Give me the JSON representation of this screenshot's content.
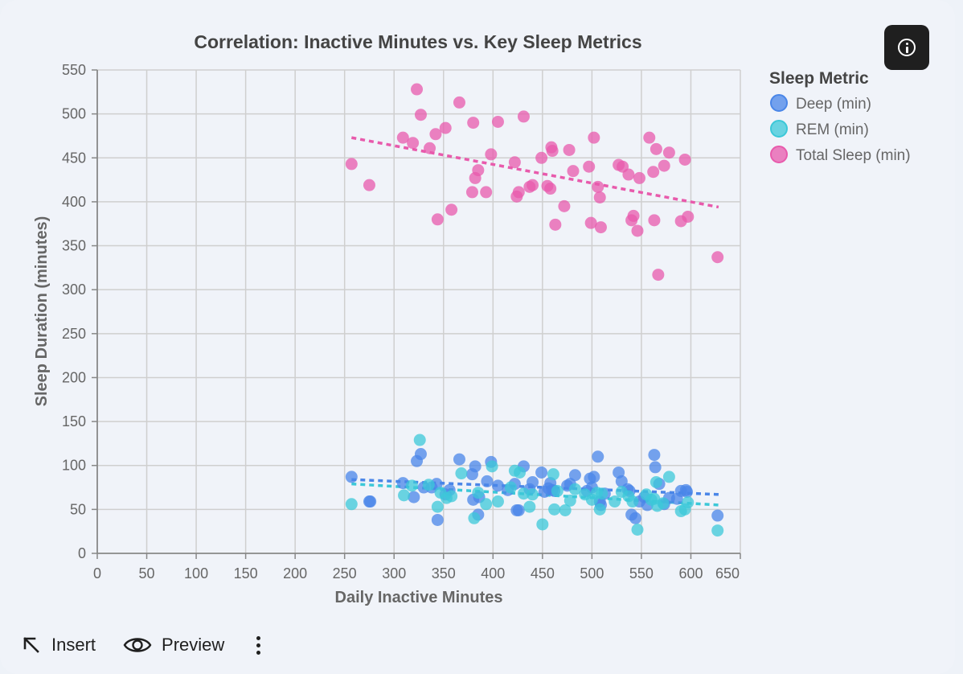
{
  "toolbar": {
    "insert_label": "Insert",
    "preview_label": "Preview"
  },
  "chart_data": {
    "type": "scatter",
    "title": "Correlation: Inactive Minutes vs. Key Sleep Metrics",
    "xlabel": "Daily Inactive Minutes",
    "ylabel": "Sleep Duration (minutes)",
    "xlim": [
      0,
      650
    ],
    "ylim": [
      0,
      550
    ],
    "xticks": [
      0,
      50,
      100,
      150,
      200,
      250,
      300,
      350,
      400,
      450,
      500,
      550,
      600,
      650
    ],
    "yticks": [
      0,
      50,
      100,
      150,
      200,
      250,
      300,
      350,
      400,
      450,
      500,
      550
    ],
    "grid": true,
    "legend": {
      "title": "Sleep Metric",
      "position": "right"
    },
    "series": [
      {
        "name": "Deep (min)",
        "color": "#4a86e8",
        "trend": [
          [
            257,
            84
          ],
          [
            628,
            67
          ]
        ],
        "points": [
          [
            257,
            87
          ],
          [
            275,
            59
          ],
          [
            276,
            59
          ],
          [
            309,
            80
          ],
          [
            320,
            64
          ],
          [
            323,
            105
          ],
          [
            327,
            113
          ],
          [
            330,
            75
          ],
          [
            338,
            75
          ],
          [
            343,
            79
          ],
          [
            344,
            38
          ],
          [
            352,
            67
          ],
          [
            356,
            72
          ],
          [
            366,
            107
          ],
          [
            379,
            90
          ],
          [
            380,
            61
          ],
          [
            382,
            99
          ],
          [
            385,
            44
          ],
          [
            394,
            82
          ],
          [
            398,
            104
          ],
          [
            405,
            77
          ],
          [
            422,
            79
          ],
          [
            424,
            49
          ],
          [
            426,
            49
          ],
          [
            431,
            99
          ],
          [
            437,
            73
          ],
          [
            440,
            81
          ],
          [
            449,
            92
          ],
          [
            452,
            70
          ],
          [
            456,
            74
          ],
          [
            458,
            80
          ],
          [
            460,
            72
          ],
          [
            462,
            71
          ],
          [
            475,
            77
          ],
          [
            478,
            79
          ],
          [
            483,
            89
          ],
          [
            498,
            85
          ],
          [
            500,
            75
          ],
          [
            502,
            87
          ],
          [
            506,
            110
          ],
          [
            508,
            59
          ],
          [
            509,
            55
          ],
          [
            527,
            92
          ],
          [
            530,
            82
          ],
          [
            536,
            73
          ],
          [
            538,
            71
          ],
          [
            540,
            44
          ],
          [
            544,
            40
          ],
          [
            548,
            59
          ],
          [
            556,
            55
          ],
          [
            563,
            112
          ],
          [
            564,
            98
          ],
          [
            568,
            79
          ],
          [
            573,
            56
          ],
          [
            578,
            63
          ],
          [
            590,
            71
          ],
          [
            595,
            72
          ],
          [
            596,
            70
          ],
          [
            627,
            43
          ],
          [
            386,
            64
          ],
          [
            415,
            72
          ],
          [
            495,
            71
          ],
          [
            513,
            68
          ],
          [
            553,
            64
          ],
          [
            586,
            62
          ]
        ]
      },
      {
        "name": "REM (min)",
        "color": "#3cc8d8",
        "trend": [
          [
            257,
            79
          ],
          [
            628,
            55
          ]
        ],
        "points": [
          [
            257,
            56
          ],
          [
            310,
            66
          ],
          [
            318,
            77
          ],
          [
            326,
            129
          ],
          [
            344,
            53
          ],
          [
            347,
            69
          ],
          [
            353,
            63
          ],
          [
            358,
            65
          ],
          [
            368,
            91
          ],
          [
            381,
            40
          ],
          [
            385,
            69
          ],
          [
            393,
            56
          ],
          [
            399,
            99
          ],
          [
            405,
            59
          ],
          [
            422,
            94
          ],
          [
            427,
            92
          ],
          [
            431,
            68
          ],
          [
            437,
            53
          ],
          [
            440,
            67
          ],
          [
            450,
            33
          ],
          [
            461,
            90
          ],
          [
            462,
            50
          ],
          [
            465,
            71
          ],
          [
            473,
            49
          ],
          [
            478,
            60
          ],
          [
            483,
            73
          ],
          [
            493,
            67
          ],
          [
            500,
            61
          ],
          [
            505,
            69
          ],
          [
            508,
            50
          ],
          [
            510,
            68
          ],
          [
            523,
            59
          ],
          [
            530,
            70
          ],
          [
            537,
            65
          ],
          [
            541,
            59
          ],
          [
            546,
            27
          ],
          [
            560,
            61
          ],
          [
            563,
            62
          ],
          [
            565,
            81
          ],
          [
            566,
            54
          ],
          [
            572,
            57
          ],
          [
            578,
            87
          ],
          [
            590,
            48
          ],
          [
            594,
            50
          ],
          [
            597,
            58
          ],
          [
            627,
            26
          ],
          [
            335,
            78
          ],
          [
            418,
            75
          ],
          [
            555,
            67
          ]
        ]
      },
      {
        "name": "Total Sleep (min)",
        "color": "#e85aac",
        "trend": [
          [
            257,
            473
          ],
          [
            628,
            394
          ]
        ],
        "points": [
          [
            257,
            443
          ],
          [
            275,
            419
          ],
          [
            309,
            473
          ],
          [
            319,
            467
          ],
          [
            323,
            528
          ],
          [
            327,
            499
          ],
          [
            336,
            461
          ],
          [
            342,
            477
          ],
          [
            344,
            380
          ],
          [
            352,
            484
          ],
          [
            358,
            391
          ],
          [
            366,
            513
          ],
          [
            379,
            411
          ],
          [
            380,
            490
          ],
          [
            382,
            427
          ],
          [
            385,
            436
          ],
          [
            393,
            411
          ],
          [
            398,
            454
          ],
          [
            405,
            491
          ],
          [
            422,
            445
          ],
          [
            424,
            406
          ],
          [
            426,
            411
          ],
          [
            431,
            497
          ],
          [
            437,
            417
          ],
          [
            440,
            419
          ],
          [
            449,
            450
          ],
          [
            455,
            418
          ],
          [
            458,
            415
          ],
          [
            459,
            462
          ],
          [
            460,
            458
          ],
          [
            463,
            374
          ],
          [
            472,
            395
          ],
          [
            477,
            459
          ],
          [
            481,
            435
          ],
          [
            497,
            440
          ],
          [
            499,
            376
          ],
          [
            502,
            473
          ],
          [
            506,
            417
          ],
          [
            508,
            405
          ],
          [
            509,
            371
          ],
          [
            527,
            442
          ],
          [
            531,
            440
          ],
          [
            537,
            431
          ],
          [
            540,
            379
          ],
          [
            542,
            384
          ],
          [
            546,
            367
          ],
          [
            548,
            427
          ],
          [
            558,
            473
          ],
          [
            562,
            434
          ],
          [
            563,
            379
          ],
          [
            565,
            460
          ],
          [
            567,
            317
          ],
          [
            573,
            441
          ],
          [
            578,
            456
          ],
          [
            590,
            378
          ],
          [
            594,
            448
          ],
          [
            597,
            383
          ],
          [
            627,
            337
          ]
        ]
      }
    ]
  }
}
